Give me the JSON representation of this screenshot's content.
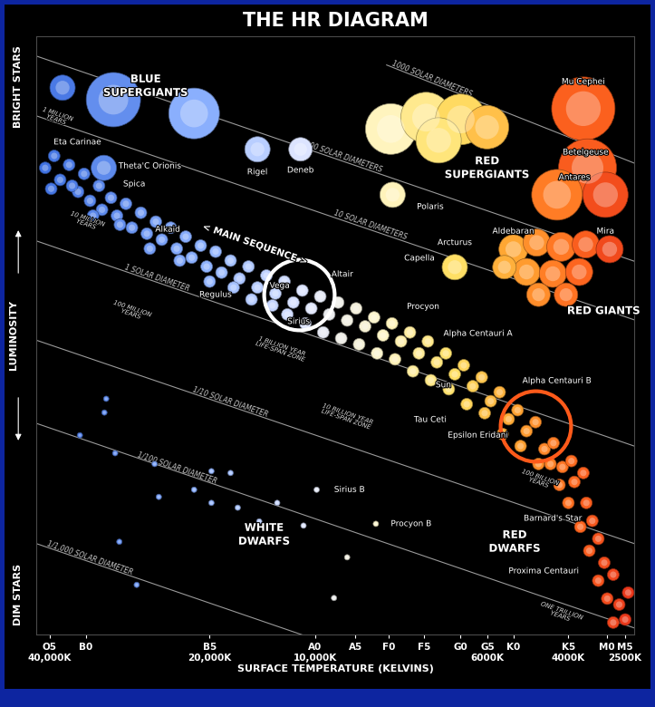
{
  "chart_data": {
    "type": "scatter",
    "title": "THE HR DIAGRAM",
    "xlabel": "SURFACE TEMPERATURE (KELVINS)",
    "ylabel": "LUMINOSITY",
    "y_end_labels": {
      "top": "BRIGHT STARS",
      "bottom": "DIM STARS"
    },
    "xlim": [
      0,
      100
    ],
    "ylim": [
      0,
      100
    ],
    "xticks": [
      {
        "value": 2.2,
        "label": "O5\n40,000K"
      },
      {
        "value": 8.3,
        "label": "B0"
      },
      {
        "value": 29.0,
        "label": "B5\n20,000K"
      },
      {
        "value": 46.6,
        "label": "A0\n10,000K"
      },
      {
        "value": 53.4,
        "label": "A5"
      },
      {
        "value": 59.0,
        "label": "F0"
      },
      {
        "value": 64.9,
        "label": "F5"
      },
      {
        "value": 70.9,
        "label": "G0"
      },
      {
        "value": 75.5,
        "label": "G5\n6000K"
      },
      {
        "value": 79.8,
        "label": "K0"
      },
      {
        "value": 89.0,
        "label": "K5\n4000K"
      },
      {
        "value": 95.5,
        "label": "M0"
      },
      {
        "value": 98.5,
        "label": "M5\n2500K"
      }
    ],
    "yticks": [],
    "tick_labels": "x",
    "grid": false,
    "series": [
      {
        "name": "< MAIN SEQUENCE >",
        "label_x": 36.6,
        "label_y": 65.2,
        "x": [
          1.5,
          3,
          4,
          5.5,
          7,
          8,
          9,
          10.5,
          11,
          12.5,
          13.5,
          15,
          16,
          17.5,
          18.5,
          20,
          21,
          22.5,
          23.5,
          25,
          26,
          27.5,
          28.5,
          30,
          31,
          32.5,
          34,
          35.5,
          37,
          38.5,
          40,
          41.5,
          43,
          44.5,
          46,
          47.5,
          49,
          50.5,
          52,
          53.5,
          55,
          56.5,
          58,
          59.5,
          61,
          62.5,
          64,
          65.5,
          67,
          68.5,
          70,
          71.5,
          73,
          74.5,
          76,
          77.5,
          79,
          80.5,
          82,
          83.5,
          85,
          86.5,
          2.5,
          6,
          9.5,
          14,
          19,
          24,
          29,
          33,
          36,
          39.5,
          42,
          45,
          48,
          51,
          54,
          57,
          60,
          63,
          66,
          69,
          72,
          75,
          78,
          81,
          84,
          86
        ],
        "y": [
          78,
          80,
          76,
          78.5,
          74,
          77,
          72.5,
          75,
          71,
          73,
          70,
          72,
          68,
          70.5,
          67,
          69,
          66,
          68,
          64.5,
          66.5,
          63,
          65,
          61.5,
          64,
          60.5,
          62.5,
          59.5,
          61.5,
          58,
          60,
          57,
          59,
          55.5,
          57.5,
          54.5,
          56.5,
          53.5,
          55.5,
          52.5,
          54.5,
          51.5,
          53,
          50,
          52,
          49,
          50.5,
          47,
          49,
          45.5,
          47,
          43.5,
          45,
          41.5,
          43,
          39,
          40.5,
          36,
          37.5,
          34,
          35.5,
          31,
          32,
          74.5,
          75,
          70,
          68.5,
          64.5,
          62.5,
          59,
          58,
          56,
          55,
          53.5,
          52,
          50.5,
          49.5,
          48.5,
          47,
          46,
          44,
          42.5,
          41,
          38.5,
          37,
          33.5,
          31.5,
          28.5,
          28.5
        ]
      },
      {
        "name": "RED\nDWARFS",
        "label_x": 80,
        "label_y": 15.5,
        "x": [
          88,
          89.5,
          87.5,
          90,
          91.5,
          89,
          92,
          93,
          91,
          94,
          92.5,
          95,
          94,
          96.5,
          95.5,
          97.5,
          96.5,
          98.5,
          99
        ],
        "y": [
          28,
          29,
          25,
          25.5,
          27,
          22,
          22,
          19,
          18,
          16,
          14,
          12,
          9,
          10,
          6,
          5,
          2,
          2.5,
          7
        ]
      },
      {
        "name": "BLUE\nSUPERGIANTS",
        "label_x": 18.3,
        "label_y": 91.7,
        "x": [
          4.4,
          12.9,
          26.4,
          11.3,
          37.0,
          44.2
        ],
        "y": [
          91.4,
          89.4,
          87.1,
          78.0,
          81.1,
          81.1
        ],
        "sizes": [
          28,
          60,
          56,
          28,
          28,
          26
        ]
      },
      {
        "name": "RED\nSUPERGIANTS",
        "label_x": 75.4,
        "label_y": 78.0,
        "x": [
          59.3,
          65.2,
          71.0,
          75.4,
          67.3,
          59.6,
          91.5,
          92.2,
          87.1,
          95.2
        ],
        "y": [
          84.5,
          86.4,
          86.1,
          84.8,
          82.6,
          73.5,
          87.9,
          78.0,
          73.5,
          73.5
        ],
        "sizes": [
          56,
          56,
          56,
          48,
          50,
          28,
          70,
          64,
          56,
          50
        ]
      },
      {
        "name": "RED GIANTS",
        "label_x": 94.9,
        "label_y": 54.1,
        "x": [
          70.0,
          79.8,
          83.7,
          87.8,
          91.9,
          95.9,
          82.0,
          86.4,
          90.8,
          84.0,
          88.6,
          78.3
        ],
        "y": [
          61.4,
          64.4,
          65.5,
          64.8,
          65.2,
          64.4,
          60.6,
          60.3,
          60.6,
          56.8,
          56.8,
          61.4
        ],
        "sizes": [
          28,
          32,
          30,
          32,
          30,
          30,
          30,
          30,
          30,
          26,
          26,
          26
        ]
      },
      {
        "name": "WHITE\nDWARFS",
        "label_x": 38.1,
        "label_y": 16.7,
        "x": [
          11.7,
          11.4,
          7.3,
          13.2,
          19.8,
          29.3,
          32.5,
          26.4,
          20.5,
          29.3,
          33.7,
          37.3,
          44.7,
          40.3,
          46.9,
          56.8,
          52.0,
          49.8,
          13.9,
          16.8
        ],
        "y": [
          39.4,
          37.1,
          33.3,
          30.3,
          28.5,
          27.3,
          27.0,
          24.2,
          23.0,
          22.0,
          21.2,
          18.9,
          18.2,
          22.0,
          24.2,
          18.5,
          12.9,
          6.1,
          15.5,
          8.3
        ],
        "sizes": [
          6,
          6,
          6,
          6,
          6,
          6,
          6,
          6,
          6,
          6,
          6,
          6,
          6,
          6,
          6,
          6,
          6,
          6,
          6,
          6
        ]
      }
    ],
    "lines": [
      {
        "label": "1000 SOLAR DIAMETERS",
        "x": [
          58.6,
          100
        ],
        "y": [
          95.2,
          78.8
        ],
        "label_x": 65.9
      },
      {
        "label": "100 SOLAR DIAMETERS",
        "x": [
          0,
          100
        ],
        "y": [
          96.7,
          62.4
        ],
        "label_x": 51.2
      },
      {
        "label": "10 SOLAR DIAMETERS",
        "x": [
          0,
          100
        ],
        "y": [
          86.7,
          52.6
        ],
        "label_x": 55.6
      },
      {
        "label": "1 SOLAR DIAMETER",
        "x": [
          0,
          100
        ],
        "y": [
          65.8,
          31.5
        ],
        "label_x": 20
      },
      {
        "label": "1/10 SOLAR DIAMETER",
        "x": [
          0,
          100
        ],
        "y": [
          49.2,
          15.2
        ],
        "label_x": 32.2
      },
      {
        "label": "1/100 SOLAR DIAMETER",
        "x": [
          0,
          100
        ],
        "y": [
          35.3,
          1.1
        ],
        "label_x": 23.4
      },
      {
        "label": "1/1,000 SOLAR DIAMETER",
        "x": [
          0,
          100
        ],
        "y": [
          15.2,
          -19.1
        ],
        "label_x": 8.8
      }
    ],
    "annotations": [
      {
        "text": "Eta Carinae",
        "x": 6.9,
        "y": 82.3
      },
      {
        "text": "Theta'C Orionis",
        "x": 19.0,
        "y": 78.3
      },
      {
        "text": "Spica",
        "x": 16.4,
        "y": 75.3
      },
      {
        "text": "Alkaid",
        "x": 22.0,
        "y": 67.7
      },
      {
        "text": "Regulus",
        "x": 30.0,
        "y": 56.8
      },
      {
        "text": "Rigel",
        "x": 37.0,
        "y": 77.3
      },
      {
        "text": "Deneb",
        "x": 44.2,
        "y": 77.6
      },
      {
        "text": "Vega",
        "x": 40.7,
        "y": 58.3
      },
      {
        "text": "Sirius",
        "x": 43.9,
        "y": 52.3
      },
      {
        "text": "Altair",
        "x": 51.2,
        "y": 60.2
      },
      {
        "text": "Procyon",
        "x": 64.7,
        "y": 54.8
      },
      {
        "text": "Capella",
        "x": 64.1,
        "y": 62.9
      },
      {
        "text": "Polaris",
        "x": 65.9,
        "y": 71.5
      },
      {
        "text": "Arcturus",
        "x": 70.0,
        "y": 65.5
      },
      {
        "text": "Aldebaran",
        "x": 79.8,
        "y": 67.4
      },
      {
        "text": "Mira",
        "x": 95.2,
        "y": 67.4
      },
      {
        "text": "Mu Cephei",
        "x": 91.5,
        "y": 92.4
      },
      {
        "text": "Betelgeuse",
        "x": 91.9,
        "y": 80.6
      },
      {
        "text": "Antares",
        "x": 90.0,
        "y": 76.4
      },
      {
        "text": "Alpha Centauri A",
        "x": 73.9,
        "y": 50.3
      },
      {
        "text": "Sun",
        "x": 68.1,
        "y": 41.7
      },
      {
        "text": "Alpha Centauri B",
        "x": 87.1,
        "y": 42.4
      },
      {
        "text": "Tau Ceti",
        "x": 65.9,
        "y": 35.9
      },
      {
        "text": "Epsilon Eridani",
        "x": 73.9,
        "y": 33.3
      },
      {
        "text": "Barnard's Star",
        "x": 86.4,
        "y": 19.4
      },
      {
        "text": "Proxima Centauri",
        "x": 84.9,
        "y": 10.6
      },
      {
        "text": "Sirius B",
        "x": 52.4,
        "y": 24.2
      },
      {
        "text": "Procyon B",
        "x": 62.7,
        "y": 18.5
      }
    ],
    "notes": [
      {
        "text": "1 MILLION\nYEARS",
        "x": 3.5,
        "y": 86.5
      },
      {
        "text": "10 MILLION\nYEARS",
        "x": 8.5,
        "y": 69
      },
      {
        "text": "100 MILLION\nYEARS",
        "x": 16,
        "y": 54
      },
      {
        "text": "1 BILLION YEAR\nLIFE-SPAN ZONE",
        "x": 41,
        "y": 47.7
      },
      {
        "text": "10 BILLION YEAR\nLIFE-SPAN ZONE",
        "x": 52,
        "y": 36.4
      },
      {
        "text": "100 BILLION\nYEARS",
        "x": 84.2,
        "y": 25.8
      },
      {
        "text": "ONE TRILLION\nYEARS",
        "x": 87.8,
        "y": 3.5
      }
    ],
    "highlights": [
      {
        "x": 43.9,
        "y": 56.8,
        "color": "#ffffff"
      },
      {
        "x": 83.5,
        "y": 34.8,
        "color": "#ff5a1a"
      }
    ]
  }
}
